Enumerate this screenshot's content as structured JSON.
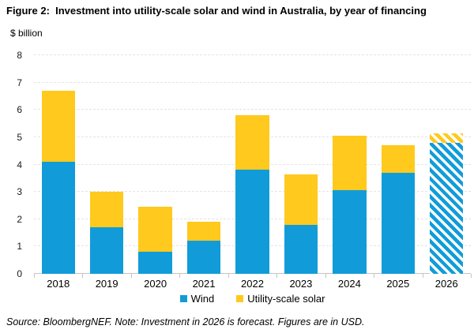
{
  "figure": {
    "title": "Figure 2:  Investment into utility-scale solar and wind in Australia, by year of financing",
    "unit_label": "$ billion",
    "source_note": "Source: BloombergNEF. Note: Investment in 2026 is forecast. Figures are in USD."
  },
  "colors": {
    "wind_blue": "#119CD9",
    "solar_yellow": "#FFC91D",
    "gridline": "#e4e4e4",
    "axis_line": "#c4c4c4"
  },
  "chart_data": {
    "type": "bar",
    "stacked": true,
    "title": "Investment into utility-scale solar and wind in Australia, by year of financing",
    "ylabel": "$ billion",
    "xlabel": "",
    "categories": [
      "2018",
      "2019",
      "2020",
      "2021",
      "2022",
      "2023",
      "2024",
      "2025",
      "2026"
    ],
    "series": [
      {
        "name": "Wind",
        "color": "#119CD9",
        "values": [
          4.1,
          1.7,
          0.8,
          1.2,
          3.8,
          1.8,
          3.05,
          3.7,
          4.8
        ]
      },
      {
        "name": "Utility-scale solar",
        "color": "#FFC91D",
        "values": [
          2.6,
          1.3,
          1.65,
          0.7,
          2.0,
          1.85,
          2.0,
          1.0,
          0.35
        ]
      }
    ],
    "totals": [
      6.7,
      3.0,
      2.45,
      1.9,
      5.8,
      3.65,
      5.05,
      4.7,
      5.15
    ],
    "forecast_categories": [
      "2026"
    ],
    "forecast_style": "diagonal-hatch",
    "ylim": [
      0,
      8
    ],
    "yticks": [
      0,
      1,
      2,
      3,
      4,
      5,
      6,
      7,
      8
    ],
    "grid": "horizontal-dashed",
    "legend_position": "bottom-center"
  }
}
